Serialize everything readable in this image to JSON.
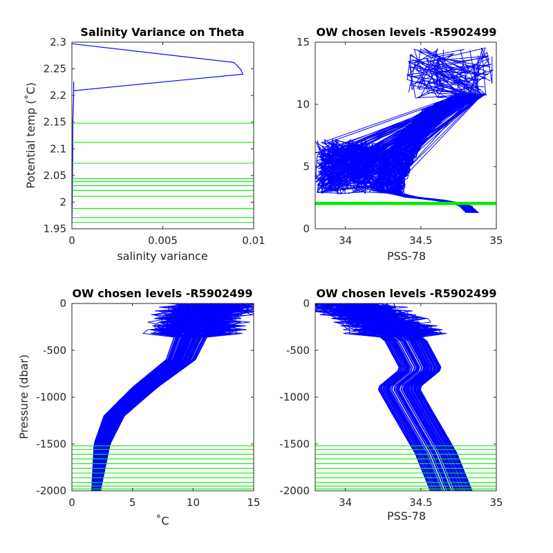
{
  "chart_data": [
    {
      "id": "p1",
      "type": "line",
      "title": "Salinity Variance on Theta",
      "xlabel": "salinity variance",
      "ylabel": "Potential temp (˚C)",
      "xlim": [
        0,
        0.01
      ],
      "ylim": [
        1.95,
        2.3
      ],
      "xticks": [
        0,
        0.005,
        0.01
      ],
      "xtick_labels": [
        "0",
        "0.005",
        "0.01"
      ],
      "yticks": [
        1.95,
        2,
        2.05,
        2.1,
        2.15,
        2.2,
        2.25,
        2.3
      ],
      "ytick_labels": [
        "1.95",
        "2",
        "2.05",
        "2.1",
        "2.15",
        "2.2",
        "2.25",
        "2.3"
      ],
      "series": [
        {
          "color": "#0000ff",
          "points": [
            [
              0,
              2.297
            ],
            [
              0.0089,
              2.262
            ],
            [
              0.0091,
              2.256
            ],
            [
              0.0093,
              2.248
            ],
            [
              0.0094,
              2.24
            ],
            [
              0.0001,
              2.209
            ],
            [
              0.0001,
              2.226
            ],
            [
              0.0001,
              2.2
            ],
            [
              5e-05,
              2.15
            ],
            [
              5e-05,
              2.1
            ],
            [
              3e-05,
              2.05
            ],
            [
              2e-05,
              2.0
            ],
            [
              0.0,
              1.96
            ]
          ]
        }
      ],
      "hlines": {
        "color": "#00ee00",
        "values": [
          2.148,
          2.112,
          2.073,
          2.044,
          2.039,
          2.031,
          2.022,
          2.011,
          1.988,
          1.971,
          1.962
        ]
      }
    },
    {
      "id": "p2",
      "type": "line",
      "title": "OW chosen levels -R5902499",
      "xlabel": "PSS-78",
      "ylabel": "",
      "xlim": [
        33.8,
        35
      ],
      "ylim": [
        0,
        15
      ],
      "xticks": [
        34,
        34.5,
        35
      ],
      "xtick_labels": [
        "34",
        "34.5",
        "35"
      ],
      "yticks": [
        0,
        5,
        10,
        15
      ],
      "ytick_labels": [
        "0",
        "5",
        "10",
        "15"
      ],
      "series_color": "#0000ff",
      "profile_count": 120,
      "profile_envelope": [
        [
          34.84,
          1.3
        ],
        [
          34.8,
          1.8
        ],
        [
          34.7,
          2.2
        ],
        [
          34.45,
          2.5
        ],
        [
          34.28,
          3.0
        ],
        [
          34.3,
          4.0
        ],
        [
          34.35,
          5.5
        ],
        [
          34.45,
          7.5
        ],
        [
          34.6,
          9.5
        ],
        [
          34.8,
          10.7
        ],
        [
          34.98,
          11.3
        ]
      ],
      "fresh_surface_range": {
        "s": [
          33.8,
          34.3
        ],
        "t": [
          2.8,
          7.2
        ]
      },
      "warm_peaks": {
        "s": [
          34.4,
          34.98
        ],
        "t": [
          10.5,
          14.6
        ]
      },
      "hlines": {
        "color": "#00ee00",
        "values": [
          1.95,
          1.98,
          2.01,
          2.04,
          2.07,
          2.1,
          2.13
        ]
      }
    },
    {
      "id": "p3",
      "type": "line",
      "title": "OW chosen levels -R5902499",
      "xlabel": "˚C",
      "ylabel": "Pressure (dbar)",
      "xlim": [
        0,
        15
      ],
      "ylim": [
        -2000,
        0
      ],
      "xticks": [
        0,
        5,
        10,
        15
      ],
      "xtick_labels": [
        "0",
        "5",
        "10",
        "15"
      ],
      "yticks": [
        -2000,
        -1500,
        -1000,
        -500,
        0
      ],
      "ytick_labels": [
        "-2000",
        "-1500",
        "-1000",
        "-500",
        "0"
      ],
      "series_color": "#0000ff",
      "profile_count": 120,
      "profile_envelope": [
        [
          2.0,
          -2000
        ],
        [
          2.5,
          -1500
        ],
        [
          3.5,
          -1200
        ],
        [
          6.0,
          -900
        ],
        [
          9.0,
          -600
        ],
        [
          10.0,
          -300
        ],
        [
          11.0,
          -100
        ],
        [
          12.0,
          0
        ]
      ],
      "hlines": {
        "color": "#00ee00",
        "values": [
          -1520,
          -1560,
          -1610,
          -1660,
          -1710,
          -1760,
          -1810,
          -1860,
          -1910,
          -1950,
          -1980
        ]
      }
    },
    {
      "id": "p4",
      "type": "line",
      "title": "OW chosen levels -R5902499",
      "xlabel": "PSS-78",
      "ylabel": "",
      "xlim": [
        33.8,
        35
      ],
      "ylim": [
        -2000,
        0
      ],
      "xticks": [
        34,
        34.5,
        35
      ],
      "xtick_labels": [
        "34",
        "34.5",
        "35"
      ],
      "yticks": [
        -2000,
        -1500,
        -1000,
        -500,
        0
      ],
      "ytick_labels": [
        "-2000",
        "-1500",
        "-1000",
        "-500",
        "0"
      ],
      "series_color": "#0000ff",
      "profile_count": 120,
      "profile_envelope": [
        [
          34.7,
          -2000
        ],
        [
          34.6,
          -1600
        ],
        [
          34.42,
          -1100
        ],
        [
          34.35,
          -900
        ],
        [
          34.5,
          -700
        ],
        [
          34.4,
          -400
        ],
        [
          34.2,
          -150
        ],
        [
          34.0,
          0
        ]
      ],
      "hlines": {
        "color": "#00ee00",
        "values": [
          -1520,
          -1560,
          -1610,
          -1660,
          -1710,
          -1760,
          -1810,
          -1860,
          -1910,
          -1950,
          -1980
        ]
      }
    }
  ]
}
